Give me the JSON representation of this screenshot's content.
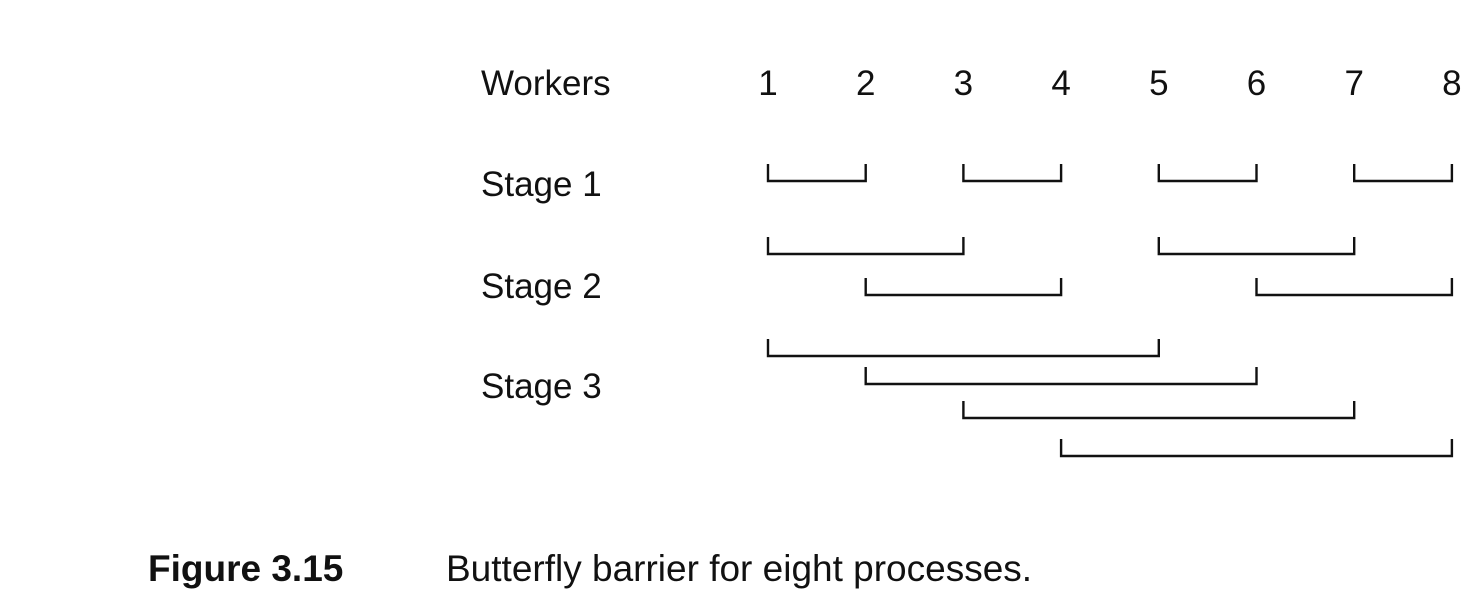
{
  "diagram": {
    "workers_label": "Workers",
    "workers": [
      "1",
      "2",
      "3",
      "4",
      "5",
      "6",
      "7",
      "8"
    ],
    "stages": [
      {
        "label": "Stage 1",
        "pairs": [
          [
            1,
            2
          ],
          [
            3,
            4
          ],
          [
            5,
            6
          ],
          [
            7,
            8
          ]
        ]
      },
      {
        "label": "Stage 2",
        "pairs": [
          [
            1,
            3
          ],
          [
            5,
            7
          ],
          [
            2,
            4
          ],
          [
            6,
            8
          ]
        ]
      },
      {
        "label": "Stage 3",
        "pairs": [
          [
            1,
            5
          ],
          [
            2,
            6
          ],
          [
            3,
            7
          ],
          [
            4,
            8
          ]
        ]
      }
    ]
  },
  "caption": {
    "number": "Figure 3.15",
    "text": "Butterfly barrier for eight processes."
  },
  "colors": {
    "ink": "#111111",
    "background": "#ffffff"
  }
}
